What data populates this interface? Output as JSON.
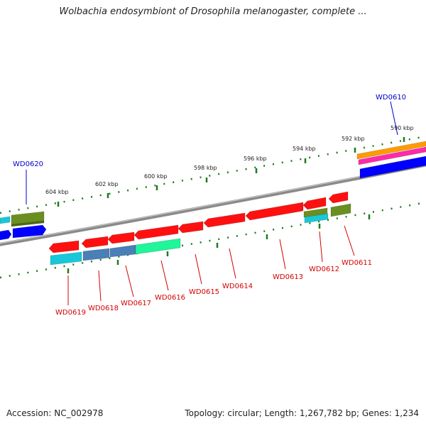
{
  "title": "Wolbachia endosymbiont of Drosophila melanogaster, complete ...",
  "footer": {
    "accession": "Accession: NC_002978",
    "summary": "Topology: circular; Length: 1,267,782 bp; Genes: 1,234"
  },
  "colors": {
    "backbone": "#8a8a8a",
    "tick": "#1e7a1e",
    "label_strand_minus": "#d40000",
    "label_strand_plus": "#0000cc",
    "red": "#ff1010",
    "olive": "#6a8f20",
    "blue": "#0000ff",
    "cyan": "#18c8d8",
    "steelblue": "#4a7fb8",
    "springgreen": "#1ff59a",
    "orange": "#ff9a00",
    "magenta": "#ff2aa8"
  },
  "ticks": [
    "604 kbp",
    "602 kbp",
    "600 kbp",
    "598 kbp",
    "596 kbp",
    "594 kbp",
    "592 kbp",
    "590 kbp"
  ],
  "genes": {
    "WD0610": "WD0610",
    "WD0611": "WD0611",
    "WD0612": "WD0612",
    "WD0613": "WD0613",
    "WD0614": "WD0614",
    "WD0615": "WD0615",
    "WD0616": "WD0616",
    "WD0617": "WD0617",
    "WD0618": "WD0618",
    "WD0619": "WD0619",
    "WD0620": "WD0620"
  }
}
